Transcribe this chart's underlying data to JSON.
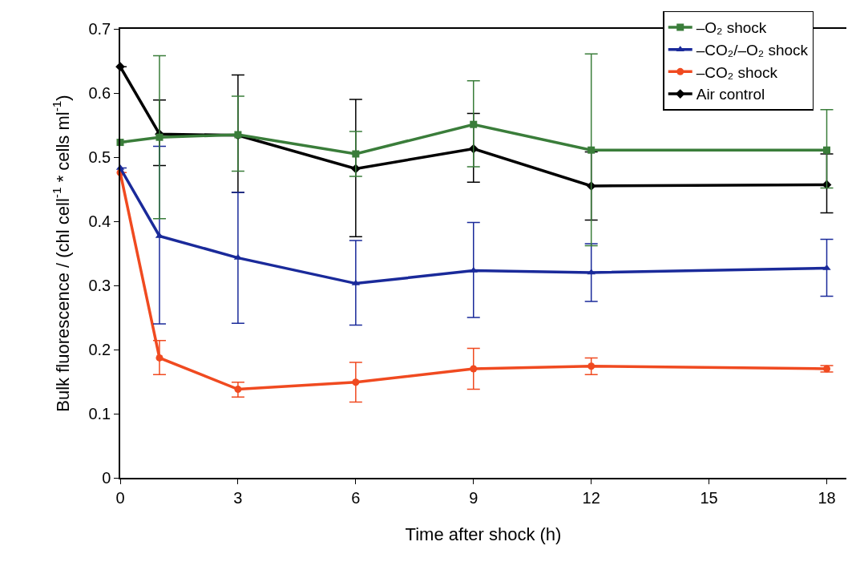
{
  "chart_data": {
    "type": "line",
    "xlabel": "Time after shock (h)",
    "ylabel": "Bulk fluorescence / (chl cell$^{-1}$ * cells ml$^{-1}$)",
    "x": [
      0,
      1,
      3,
      6,
      9,
      12,
      18
    ],
    "xlim": [
      0,
      18.5
    ],
    "xticks": [
      0,
      3,
      6,
      9,
      12,
      15,
      18
    ],
    "ylim": [
      0,
      0.7
    ],
    "yticks": [
      0,
      0.1,
      0.2,
      0.3,
      0.4,
      0.5,
      0.6,
      0.7
    ],
    "legend": "top right",
    "grid": false,
    "line_style": "solid",
    "series": [
      {
        "name": "–O₂ shock",
        "color": "#3a7d3a",
        "marker": "square",
        "values": [
          0.523,
          0.531,
          0.535,
          0.505,
          0.551,
          0.511,
          0.511
        ],
        "errors": [
          null,
          [
            0.404,
            0.658
          ],
          [
            0.478,
            0.595
          ],
          [
            0.47,
            0.54
          ],
          [
            0.485,
            0.619
          ],
          [
            0.362,
            0.661
          ],
          [
            0.452,
            0.574
          ]
        ]
      },
      {
        "name": "–CO₂/–O₂ shock",
        "color": "#1a2a9a",
        "marker": "triangle",
        "values": [
          0.483,
          0.377,
          0.343,
          0.303,
          0.323,
          0.32,
          0.327
        ],
        "errors": [
          null,
          [
            0.24,
            0.517
          ],
          [
            0.241,
            0.445
          ],
          [
            0.238,
            0.37
          ],
          [
            0.25,
            0.398
          ],
          [
            0.275,
            0.365
          ],
          [
            0.283,
            0.372
          ]
        ]
      },
      {
        "name": "–CO₂ shock",
        "color": "#f04a20",
        "marker": "circle",
        "values": [
          0.476,
          0.187,
          0.138,
          0.149,
          0.17,
          0.174,
          0.17
        ],
        "errors": [
          null,
          [
            0.161,
            0.214
          ],
          [
            0.126,
            0.149
          ],
          [
            0.118,
            0.18
          ],
          [
            0.138,
            0.202
          ],
          [
            0.161,
            0.187
          ],
          [
            0.165,
            0.175
          ]
        ]
      },
      {
        "name": "Air control",
        "color": "#000000",
        "marker": "diamond",
        "values": [
          0.641,
          0.536,
          0.534,
          0.482,
          0.513,
          0.455,
          0.457
        ],
        "errors": [
          null,
          [
            0.487,
            0.589
          ],
          [
            0.445,
            0.628
          ],
          [
            0.376,
            0.59
          ],
          [
            0.461,
            0.568
          ],
          [
            0.402,
            0.508
          ],
          [
            0.413,
            0.505
          ]
        ]
      }
    ]
  }
}
